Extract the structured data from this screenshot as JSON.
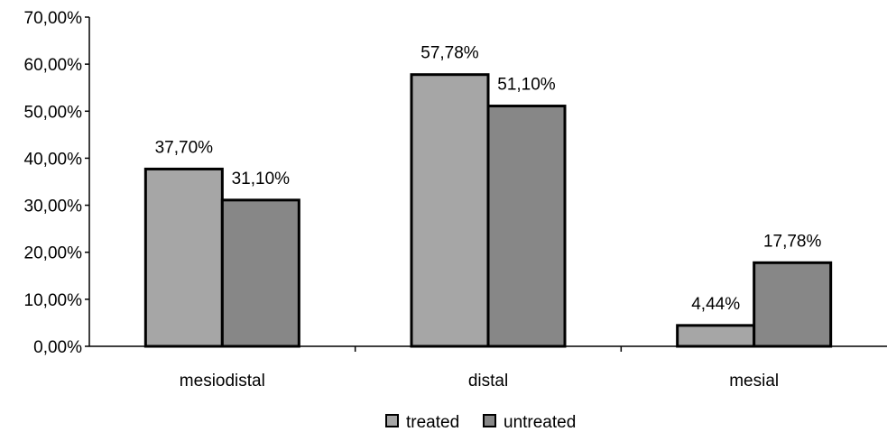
{
  "chart_data": {
    "type": "bar",
    "categories": [
      "mesiodistal",
      "distal",
      "mesial"
    ],
    "series": [
      {
        "name": "treated",
        "values": [
          37.7,
          57.78,
          4.44
        ],
        "labels": [
          "37,70%",
          "57,78%",
          "4,44%"
        ],
        "color": "#a6a6a6"
      },
      {
        "name": "untreated",
        "values": [
          31.1,
          51.1,
          17.78
        ],
        "labels": [
          "31,10%",
          "51,10%",
          "17,78%"
        ],
        "color": "#878787"
      }
    ],
    "yticks": [
      0,
      10,
      20,
      30,
      40,
      50,
      60,
      70
    ],
    "ytick_labels": [
      "0,00%",
      "10,00%",
      "20,00%",
      "30,00%",
      "40,00%",
      "50,00%",
      "60,00%",
      "70,00%"
    ],
    "ylim": [
      0,
      70
    ],
    "title": "",
    "xlabel": "",
    "ylabel": "",
    "grid": false,
    "legend_position": "bottom-center",
    "bar_outline_color": "#000000"
  }
}
